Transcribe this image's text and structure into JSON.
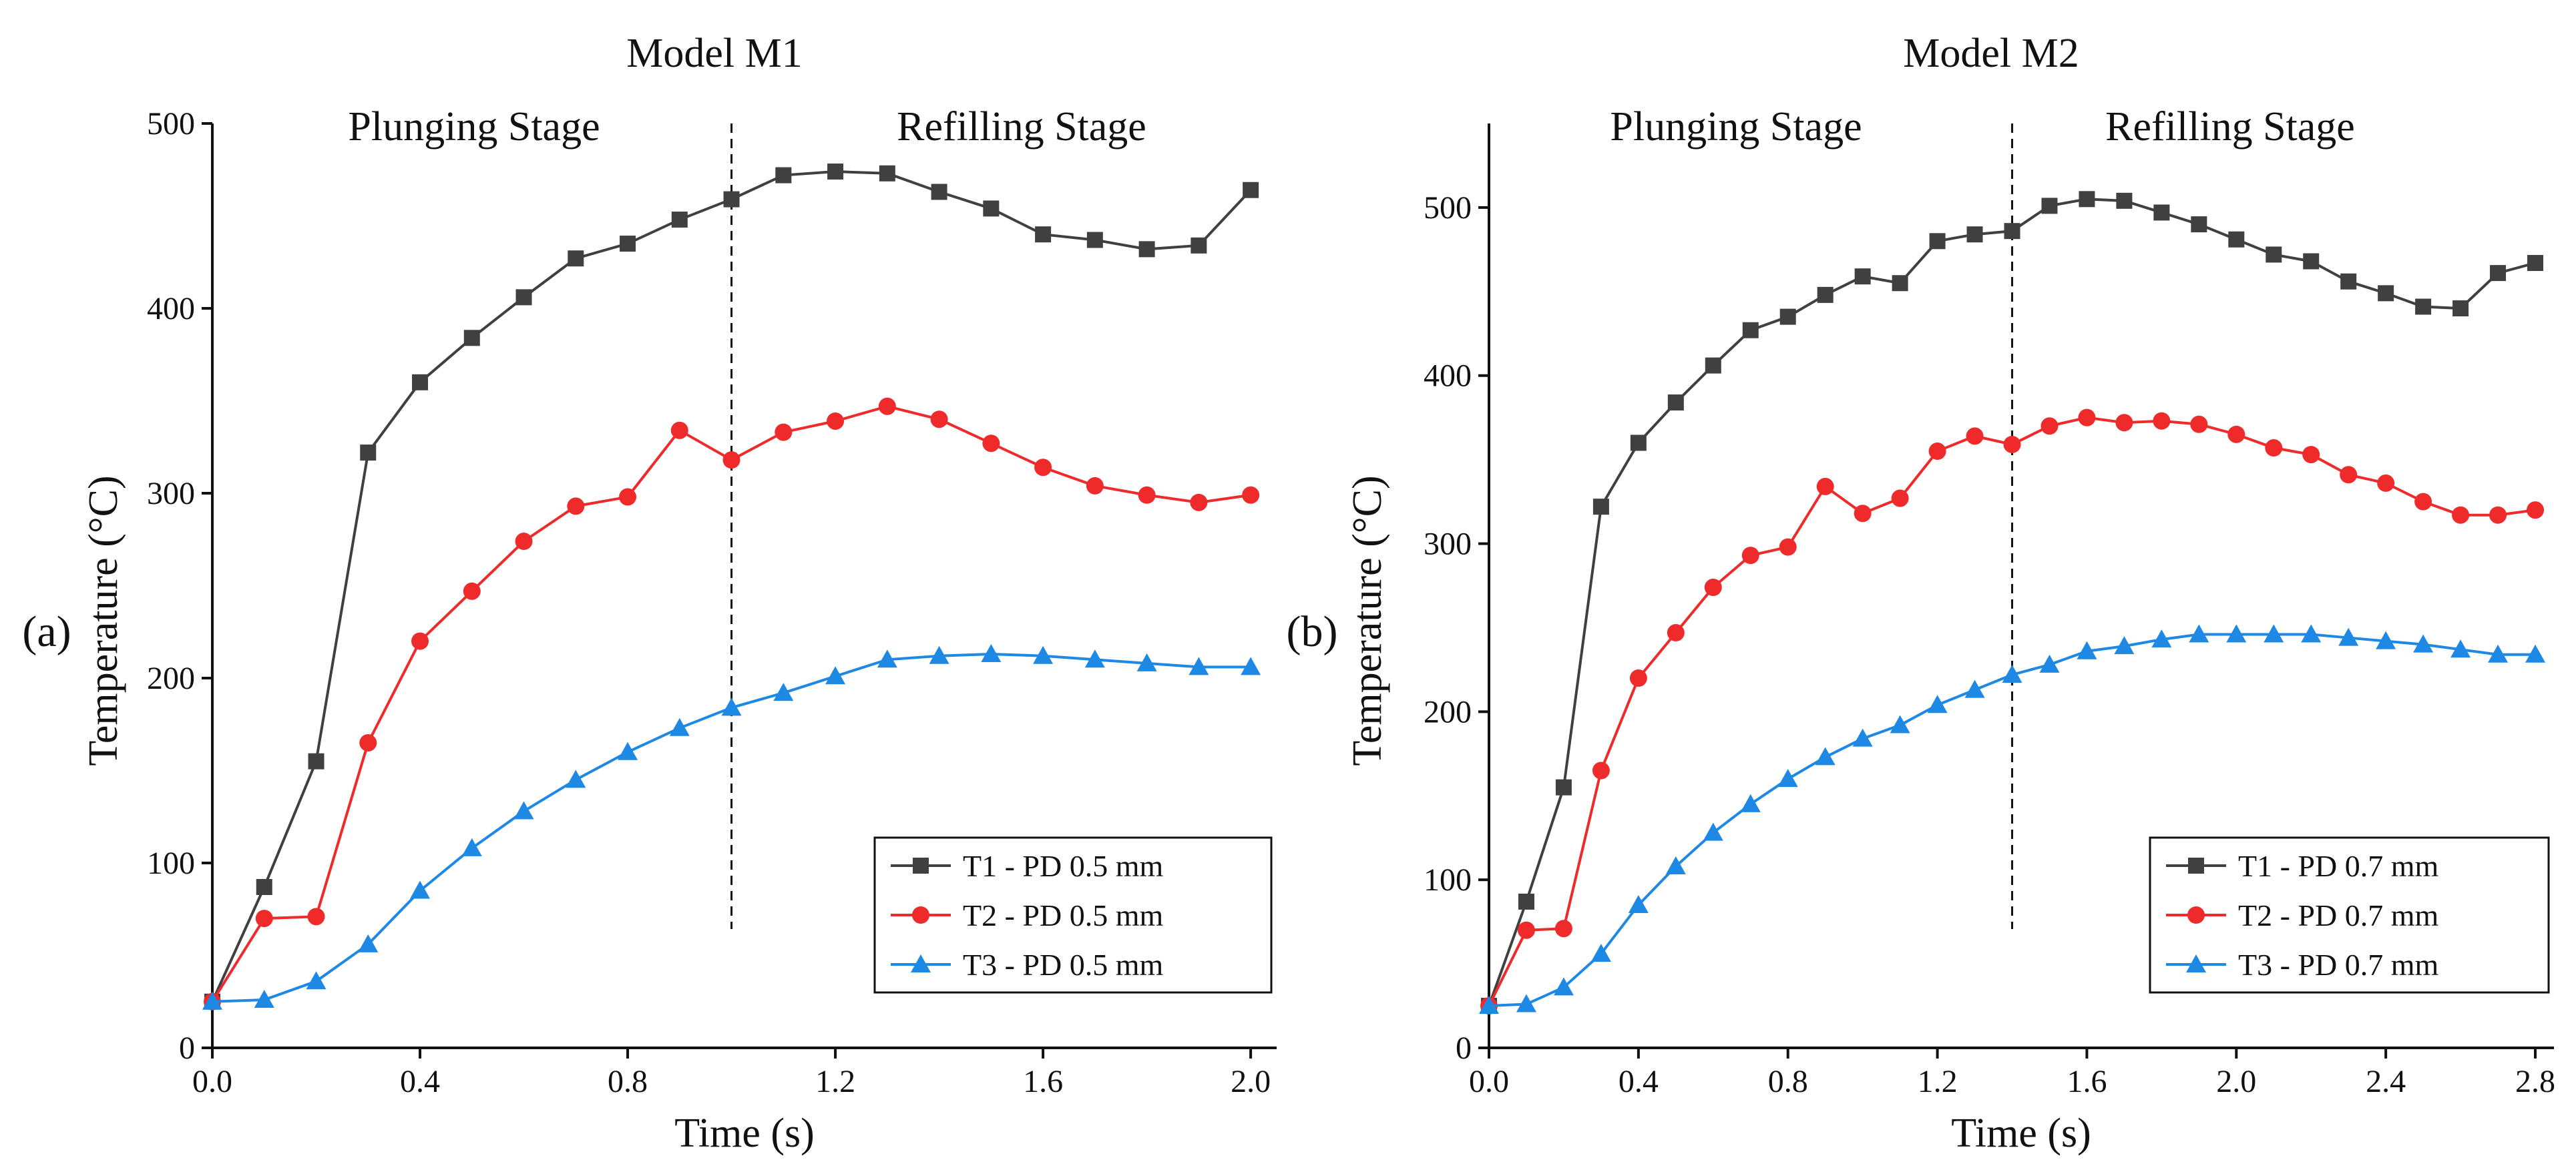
{
  "figure": {
    "panels": [
      {
        "panel_label": "(a)",
        "colors": [
          "#404040",
          "#ee2a2a",
          "#1e88e5"
        ]
      },
      {
        "panel_label": "(b)",
        "colors": [
          "#404040",
          "#ee2a2a",
          "#1e88e5"
        ]
      }
    ]
  },
  "chart_data": [
    {
      "type": "line",
      "title": "Model M1",
      "xlabel": "Time (s)",
      "ylabel": "Temperature (°C)",
      "xlim": [
        0,
        2.05
      ],
      "ylim": [
        0,
        500
      ],
      "xticks": [
        "0.0",
        "0.4",
        "0.8",
        "1.2",
        "1.6",
        "2.0"
      ],
      "yticks": [
        "0",
        "100",
        "200",
        "300",
        "400",
        "500"
      ],
      "stage_divider_x": 1.0,
      "stage_labels": [
        "Plunging Stage",
        "Refilling Stage"
      ],
      "legend_position": "bottom-right",
      "x": [
        0.0,
        0.1,
        0.2,
        0.3,
        0.4,
        0.5,
        0.6,
        0.7,
        0.8,
        0.9,
        1.0,
        1.1,
        1.2,
        1.3,
        1.4,
        1.5,
        1.6,
        1.7,
        1.8,
        1.9,
        2.0
      ],
      "series": [
        {
          "name": "T1 - PD 0.5 mm",
          "marker": "square",
          "values": [
            25,
            87,
            155,
            322,
            360,
            384,
            406,
            427,
            435,
            448,
            459,
            472,
            474,
            473,
            463,
            454,
            440,
            437,
            432,
            434,
            464
          ]
        },
        {
          "name": "T2 - PD 0.5 mm",
          "marker": "circle",
          "values": [
            25,
            70,
            71,
            165,
            220,
            247,
            274,
            293,
            298,
            334,
            318,
            333,
            339,
            347,
            340,
            327,
            314,
            304,
            299,
            295,
            299
          ]
        },
        {
          "name": "T3 - PD 0.5 mm",
          "marker": "triangle",
          "values": [
            25,
            26,
            36,
            56,
            85,
            108,
            128,
            145,
            160,
            173,
            184,
            192,
            201,
            210,
            212,
            213,
            212,
            210,
            208,
            206,
            206
          ]
        }
      ]
    },
    {
      "type": "line",
      "title": "Model M2",
      "xlabel": "Time (s)",
      "ylabel": "Temperature (°C)",
      "xlim": [
        0,
        2.85
      ],
      "ylim": [
        0,
        550
      ],
      "xticks": [
        "0.0",
        "0.4",
        "0.8",
        "1.2",
        "1.6",
        "2.0",
        "2.4",
        "2.8"
      ],
      "yticks": [
        "0",
        "100",
        "200",
        "300",
        "400",
        "500"
      ],
      "stage_divider_x": 1.4,
      "stage_labels": [
        "Plunging Stage",
        "Refilling Stage"
      ],
      "legend_position": "bottom-right",
      "x": [
        0.0,
        0.1,
        0.2,
        0.3,
        0.4,
        0.5,
        0.6,
        0.7,
        0.8,
        0.9,
        1.0,
        1.1,
        1.2,
        1.3,
        1.4,
        1.5,
        1.6,
        1.7,
        1.8,
        1.9,
        2.0,
        2.1,
        2.2,
        2.3,
        2.4,
        2.5,
        2.6,
        2.7,
        2.8
      ],
      "series": [
        {
          "name": "T1 - PD 0.7 mm",
          "marker": "square",
          "values": [
            25,
            87,
            155,
            322,
            360,
            384,
            406,
            427,
            435,
            448,
            459,
            455,
            480,
            484,
            486,
            501,
            505,
            504,
            497,
            490,
            481,
            472,
            468,
            456,
            449,
            441,
            440,
            461,
            467
          ]
        },
        {
          "name": "T2 - PD 0.7 mm",
          "marker": "circle",
          "values": [
            25,
            70,
            71,
            165,
            220,
            247,
            274,
            293,
            298,
            334,
            318,
            327,
            355,
            364,
            359,
            370,
            375,
            372,
            373,
            371,
            365,
            357,
            353,
            341,
            336,
            325,
            317,
            317,
            320
          ]
        },
        {
          "name": "T3 - PD 0.7 mm",
          "marker": "triangle",
          "values": [
            25,
            26,
            36,
            56,
            85,
            108,
            128,
            145,
            160,
            173,
            184,
            192,
            204,
            213,
            222,
            228,
            236,
            239,
            243,
            246,
            246,
            246,
            246,
            244,
            242,
            240,
            237,
            234,
            234
          ]
        }
      ]
    }
  ]
}
